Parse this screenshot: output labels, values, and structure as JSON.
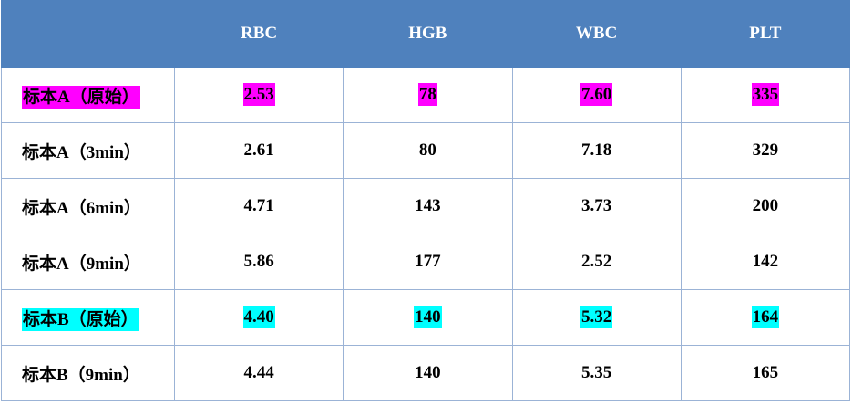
{
  "table": {
    "header": [
      "RBC",
      "HGB",
      "WBC",
      "PLT"
    ],
    "header_color": "#4f81bd",
    "rows": [
      {
        "cells": [
          "标本A（原始）",
          "2.53",
          "78",
          "7.60",
          "335"
        ],
        "highlight": "#ff00ff"
      },
      {
        "cells": [
          "标本A（3min）",
          "2.61",
          "80",
          "7.18",
          "329"
        ]
      },
      {
        "cells": [
          "标本A（6min）",
          "4.71",
          "143",
          "3.73",
          "200"
        ]
      },
      {
        "cells": [
          "标本A（9min）",
          "5.86",
          "177",
          "2.52",
          "142"
        ]
      },
      {
        "cells": [
          "标本B（原始）",
          "4.40",
          "140",
          "5.32",
          "164"
        ],
        "highlight": "#00ffff"
      },
      {
        "cells": [
          "标本B（9min）",
          "4.44",
          "140",
          "5.35",
          "165"
        ]
      }
    ]
  }
}
